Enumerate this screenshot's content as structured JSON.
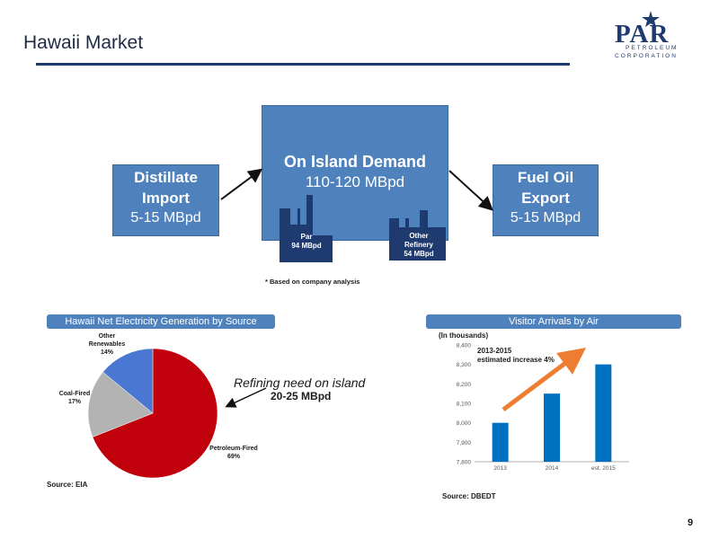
{
  "header": {
    "title": "Hawaii Market",
    "logo_main": "PAR",
    "logo_sub1": "PETROLEUM",
    "logo_sub2": "CORPORATION"
  },
  "flow": {
    "demand_title": "On Island Demand",
    "demand_value": "110-120 MBpd",
    "import_line1": "Distillate",
    "import_line2": "Import",
    "import_line3": "5-15 MBpd",
    "export_line1": "Fuel Oil",
    "export_line2": "Export",
    "export_line3": "5-15 MBpd",
    "par_label": "Par",
    "par_value": "94 MBpd",
    "other_label1": "Other",
    "other_label2": "Refinery",
    "other_value": "54 MBpd",
    "note": "* Based on company analysis"
  },
  "colors": {
    "box_blue": "#4f81bd",
    "refinery_navy": "#1f3a6e",
    "pie_red": "#c0000b",
    "pie_gray": "#b3b3b3",
    "pie_blue": "#4a77d1",
    "bar_blue": "#0070c0",
    "arrow_orange": "#ed7d31"
  },
  "annotation": {
    "refining_line1": "Refining need on island",
    "refining_line2": "20-25 MBpd"
  },
  "sources": {
    "eia": "Source: EIA",
    "dbedt": "Source: DBEDT"
  },
  "page_number": "9",
  "chart_data": [
    {
      "type": "pie",
      "title": "Hawaii Net Electricity Generation by Source",
      "slices": [
        {
          "label": "Petroleum-Fired",
          "value": 69,
          "display": "69%"
        },
        {
          "label": "Coal-Fired",
          "value": 17,
          "display": "17%"
        },
        {
          "label": "Other Renewables",
          "value": 14,
          "display": "14%"
        }
      ],
      "label_line2": {
        "Other Renewables": [
          "Other",
          "Renewables"
        ]
      }
    },
    {
      "type": "bar",
      "title": "Visitor Arrivals by Air",
      "unit_label": "(In thousands)",
      "categories": [
        "2013",
        "2014",
        "est. 2015"
      ],
      "values": [
        8000,
        8150,
        8300
      ],
      "ylim": [
        7800,
        8400
      ],
      "yticks": [
        "7,800",
        "7,900",
        "8,000",
        "8,100",
        "8,200",
        "8,300",
        "8,400"
      ],
      "annotation_line1": "2013-2015",
      "annotation_line2": "estimated increase 4%"
    }
  ]
}
